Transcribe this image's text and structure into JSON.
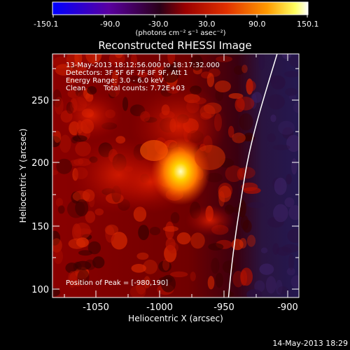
{
  "colorbar": {
    "tick_labels": [
      "-150.1",
      "-90.0",
      "-30.0",
      "30.0",
      "90.0",
      "150.1"
    ],
    "units": "(photons cm⁻² s⁻¹ asec⁻²)"
  },
  "plot": {
    "title": "Reconstructed RHESSI Image",
    "info": {
      "time_range": "13-May-2013 18:12:56.000 to 18:17:32.000",
      "detectors": "Detectors: 3F 5F 6F 7F 8F 9F, Att 1",
      "energy": "Energy Range: 3.0 - 6.0 keV",
      "clean_label": "Clean",
      "counts": "Total counts: 7.72E+03"
    },
    "peak_label": "Position of Peak = [-980,190]",
    "xlabel": "Heliocentric X (arcsec)",
    "ylabel": "Heliocentric Y (arcsec)",
    "x_ticks": [
      "-1050",
      "-1000",
      "-950",
      "-900"
    ],
    "y_ticks": [
      "250",
      "200",
      "150",
      "100"
    ]
  },
  "footer_timestamp": "14-May-2013 18:29",
  "colors": {
    "limb": "#ffffff",
    "background": "#000000",
    "colormap": [
      "#0000ff",
      "#5a00a0",
      "#2a0018",
      "#9a0000",
      "#e03000",
      "#ff9a00",
      "#ffff60",
      "#ffffff"
    ]
  }
}
